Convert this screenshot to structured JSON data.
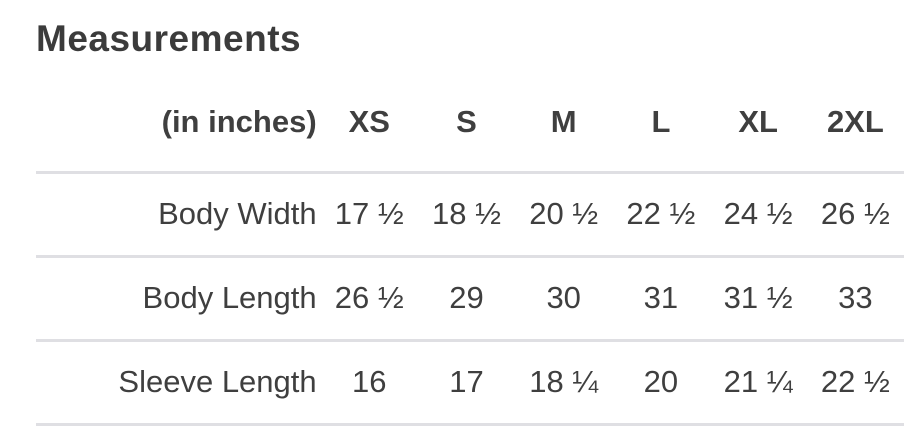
{
  "heading": "Measurements",
  "colors": {
    "text": "#3f3f3f",
    "heading": "#3b3b3b",
    "divider": "#dfdfe3",
    "background": "#ffffff"
  },
  "chart_data": {
    "type": "table",
    "title": "Measurements",
    "unit_label": "(in inches)",
    "columns": [
      "XS",
      "S",
      "M",
      "L",
      "XL",
      "2XL"
    ],
    "rows": [
      {
        "label": "Body Width",
        "values": [
          "17 ½",
          "18 ½",
          "20 ½",
          "22 ½",
          "24 ½",
          "26 ½"
        ]
      },
      {
        "label": "Body Length",
        "values": [
          "26 ½",
          "29",
          "30",
          "31",
          "31 ½",
          "33"
        ]
      },
      {
        "label": "Sleeve Length",
        "values": [
          "16",
          "17",
          "18 ¼",
          "20",
          "21 ¼",
          "22 ½"
        ]
      }
    ]
  }
}
